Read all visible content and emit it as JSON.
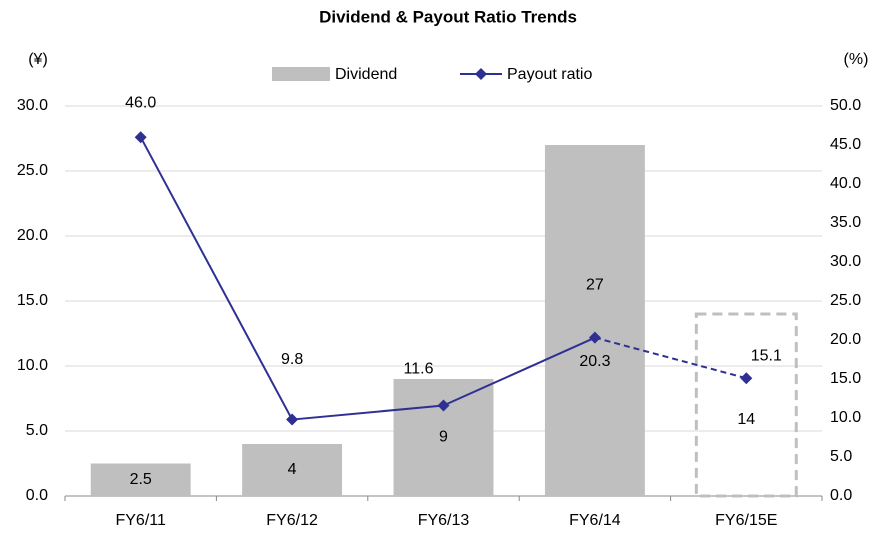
{
  "chart_data": {
    "type": "bar_line",
    "title": "Dividend & Payout Ratio Trends",
    "y_unit": "(¥)",
    "y2_unit": "(%)",
    "categories": [
      "FY6/11",
      "FY6/12",
      "FY6/13",
      "FY6/14",
      "FY6/15E"
    ],
    "series": [
      {
        "name": "Dividend",
        "type": "bar",
        "color": "#bfbfbf",
        "values": [
          2.5,
          4.0,
          9.0,
          27.0,
          14.0
        ]
      },
      {
        "name": "Payout ratio",
        "type": "line",
        "axis": "y2",
        "color": "#2e3192",
        "values": [
          46.0,
          9.8,
          11.6,
          20.3,
          15.1
        ],
        "value_labels": [
          "46.0",
          "9.8",
          "11.6",
          "20.3",
          "15.1"
        ]
      }
    ],
    "estimated_last": true,
    "ylim": [
      0,
      30
    ],
    "yticks": [
      {
        "value": 0,
        "label": "0.0"
      },
      {
        "value": 5,
        "label": "5.0"
      },
      {
        "value": 10,
        "label": "10.0"
      },
      {
        "value": 15,
        "label": "15.0"
      },
      {
        "value": 20,
        "label": "20.0"
      },
      {
        "value": 25,
        "label": "25.0"
      },
      {
        "value": 30,
        "label": "30.0"
      }
    ],
    "y2lim": [
      0,
      50
    ],
    "y2ticks": [
      {
        "value": 0,
        "label": "0.0"
      },
      {
        "value": 5,
        "label": "5.0"
      },
      {
        "value": 10,
        "label": "10.0"
      },
      {
        "value": 15,
        "label": "15.0"
      },
      {
        "value": 20,
        "label": "20.0"
      },
      {
        "value": 25,
        "label": "25.0"
      },
      {
        "value": 30,
        "label": "30.0"
      },
      {
        "value": 35,
        "label": "35.0"
      },
      {
        "value": 40,
        "label": "40.0"
      },
      {
        "value": 45,
        "label": "45.0"
      },
      {
        "value": 50,
        "label": "50.0"
      }
    ],
    "grid": true
  }
}
